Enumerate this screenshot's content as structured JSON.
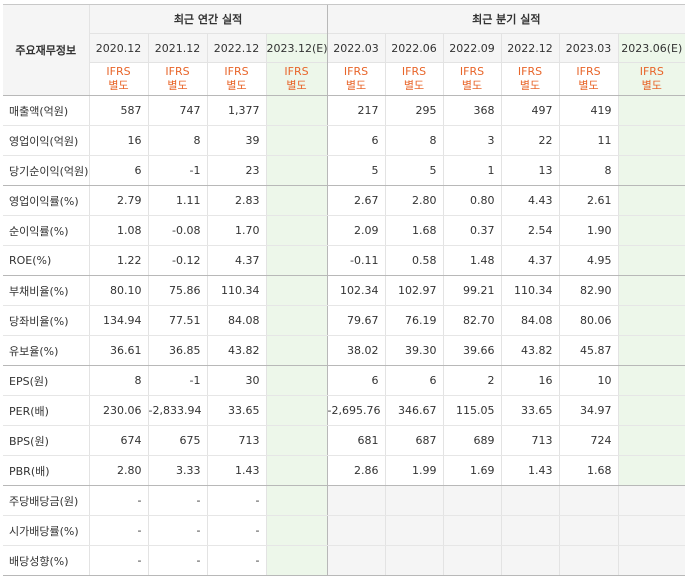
{
  "header": {
    "label": "주요재무정보",
    "annual_title": "최근 연간 실적",
    "quarter_title": "최근 분기 실적",
    "annual_periods": [
      "2020.12",
      "2021.12",
      "2022.12",
      "2023.12(E)"
    ],
    "quarter_periods": [
      "2022.03",
      "2022.06",
      "2022.09",
      "2022.12",
      "2023.03",
      "2023.06(E)"
    ],
    "ifrs_top": "IFRS",
    "ifrs_bottom": "별도"
  },
  "rows": [
    {
      "label": "매출액(억원)",
      "annual": [
        "587",
        "747",
        "1,377",
        ""
      ],
      "quarter": [
        "217",
        "295",
        "368",
        "497",
        "419",
        ""
      ]
    },
    {
      "label": "영업이익(억원)",
      "annual": [
        "16",
        "8",
        "39",
        ""
      ],
      "quarter": [
        "6",
        "8",
        "3",
        "22",
        "11",
        ""
      ]
    },
    {
      "label": "당기순이익(억원)",
      "annual": [
        "6",
        "-1",
        "23",
        ""
      ],
      "quarter": [
        "5",
        "5",
        "1",
        "13",
        "8",
        ""
      ]
    },
    {
      "label": "영업이익률(%)",
      "annual": [
        "2.79",
        "1.11",
        "2.83",
        ""
      ],
      "quarter": [
        "2.67",
        "2.80",
        "0.80",
        "4.43",
        "2.61",
        ""
      ]
    },
    {
      "label": "순이익률(%)",
      "annual": [
        "1.08",
        "-0.08",
        "1.70",
        ""
      ],
      "quarter": [
        "2.09",
        "1.68",
        "0.37",
        "2.54",
        "1.90",
        ""
      ]
    },
    {
      "label": "ROE(%)",
      "annual": [
        "1.22",
        "-0.12",
        "4.37",
        ""
      ],
      "quarter": [
        "-0.11",
        "0.58",
        "1.48",
        "4.37",
        "4.95",
        ""
      ]
    },
    {
      "label": "부채비율(%)",
      "annual": [
        "80.10",
        "75.86",
        "110.34",
        ""
      ],
      "quarter": [
        "102.34",
        "102.97",
        "99.21",
        "110.34",
        "82.90",
        ""
      ]
    },
    {
      "label": "당좌비율(%)",
      "annual": [
        "134.94",
        "77.51",
        "84.08",
        ""
      ],
      "quarter": [
        "79.67",
        "76.19",
        "82.70",
        "84.08",
        "80.06",
        ""
      ]
    },
    {
      "label": "유보율(%)",
      "annual": [
        "36.61",
        "36.85",
        "43.82",
        ""
      ],
      "quarter": [
        "38.02",
        "39.30",
        "39.66",
        "43.82",
        "45.87",
        ""
      ]
    },
    {
      "label": "EPS(원)",
      "annual": [
        "8",
        "-1",
        "30",
        ""
      ],
      "quarter": [
        "6",
        "6",
        "2",
        "16",
        "10",
        ""
      ]
    },
    {
      "label": "PER(배)",
      "annual": [
        "230.06",
        "-2,833.94",
        "33.65",
        ""
      ],
      "quarter": [
        "-2,695.76",
        "346.67",
        "115.05",
        "33.65",
        "34.97",
        ""
      ]
    },
    {
      "label": "BPS(원)",
      "annual": [
        "674",
        "675",
        "713",
        ""
      ],
      "quarter": [
        "681",
        "687",
        "689",
        "713",
        "724",
        ""
      ]
    },
    {
      "label": "PBR(배)",
      "annual": [
        "2.80",
        "3.33",
        "1.43",
        ""
      ],
      "quarter": [
        "2.86",
        "1.99",
        "1.69",
        "1.43",
        "1.68",
        ""
      ]
    },
    {
      "label": "주당배당금(원)",
      "annual": [
        "-",
        "-",
        "-",
        ""
      ],
      "quarter": [
        "",
        "",
        "",
        "",
        "",
        ""
      ]
    },
    {
      "label": "시가배당률(%)",
      "annual": [
        "-",
        "-",
        "-",
        ""
      ],
      "quarter": [
        "",
        "",
        "",
        "",
        "",
        ""
      ]
    },
    {
      "label": "배당성향(%)",
      "annual": [
        "-",
        "-",
        "-",
        ""
      ],
      "quarter": [
        "",
        "",
        "",
        "",
        "",
        ""
      ]
    }
  ],
  "colors": {
    "negative": "#e03030",
    "ifrs": "#e8652a",
    "estimate_bg": "#edf7ea",
    "header_bg": "#f5f5f5"
  }
}
